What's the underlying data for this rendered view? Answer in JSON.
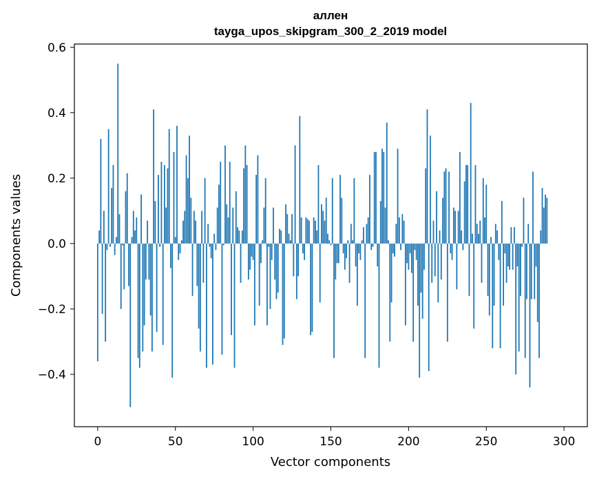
{
  "chart_data": {
    "type": "bar",
    "title_line1": "аллен",
    "title_line2": "tayga_upos_skipgram_300_2_2019 model",
    "xlabel": "Vector components",
    "ylabel": "Components values",
    "xlim": [
      -15,
      315
    ],
    "ylim": [
      -0.56,
      0.61
    ],
    "xticks": [
      0,
      50,
      100,
      150,
      200,
      250,
      300
    ],
    "xtick_labels": [
      "0",
      "50",
      "100",
      "150",
      "200",
      "250",
      "300"
    ],
    "yticks": [
      -0.4,
      -0.2,
      0.0,
      0.2,
      0.4,
      0.6
    ],
    "ytick_labels": [
      "−0.4",
      "−0.2",
      "0.0",
      "0.2",
      "0.4",
      "0.6"
    ],
    "bar_color": "#1f77b4",
    "grid": false,
    "values": [
      -0.36,
      0.04,
      0.32,
      -0.215,
      0.1,
      -0.3,
      -0.02,
      0.35,
      -0.01,
      0.17,
      0.24,
      -0.035,
      0.02,
      0.55,
      0.09,
      -0.2,
      -0.005,
      -0.14,
      0.16,
      0.215,
      -0.13,
      -0.5,
      0.02,
      0.1,
      0.04,
      0.08,
      -0.35,
      -0.38,
      0.15,
      -0.33,
      -0.25,
      -0.11,
      0.07,
      -0.11,
      -0.22,
      -0.33,
      0.41,
      0.13,
      -0.27,
      0.21,
      -0.01,
      0.25,
      -0.31,
      0.24,
      0.11,
      0.23,
      0.35,
      -0.075,
      -0.41,
      0.28,
      0.02,
      0.36,
      -0.05,
      -0.03,
      0.01,
      0.07,
      0.1,
      0.27,
      0.2,
      0.33,
      0.14,
      -0.16,
      0.1,
      0.07,
      -0.13,
      -0.26,
      -0.33,
      0.1,
      -0.12,
      0.2,
      -0.38,
      0.06,
      -0.01,
      -0.045,
      -0.37,
      0.03,
      -0.02,
      0.11,
      0.18,
      0.25,
      -0.34,
      -0.005,
      0.3,
      0.12,
      0.08,
      0.25,
      -0.28,
      0.11,
      -0.38,
      0.16,
      0.05,
      0.04,
      -0.12,
      0.04,
      0.23,
      0.3,
      0.24,
      -0.11,
      -0.08,
      -0.04,
      -0.05,
      -0.25,
      0.21,
      0.27,
      -0.19,
      -0.06,
      0.01,
      0.11,
      0.2,
      -0.25,
      -0.01,
      -0.2,
      -0.05,
      0.11,
      -0.11,
      -0.17,
      -0.15,
      0.045,
      0.04,
      -0.31,
      -0.29,
      0.12,
      0.09,
      0.03,
      0.01,
      0.09,
      -0.1,
      0.3,
      -0.17,
      -0.1,
      0.39,
      0.08,
      -0.03,
      -0.05,
      0.08,
      0.075,
      0.07,
      -0.28,
      -0.27,
      0.08,
      0.07,
      0.04,
      0.24,
      -0.18,
      0.12,
      0.1,
      0.07,
      0.14,
      0.03,
      0.01,
      -0.005,
      0.2,
      -0.35,
      -0.11,
      -0.06,
      -0.06,
      0.21,
      0.14,
      -0.03,
      -0.08,
      -0.045,
      0.01,
      -0.12,
      0.06,
      0.01,
      0.2,
      -0.07,
      -0.19,
      -0.03,
      -0.05,
      0.01,
      0.05,
      -0.35,
      0.06,
      0.08,
      0.21,
      -0.02,
      -0.01,
      0.28,
      0.28,
      -0.07,
      -0.38,
      0.13,
      0.29,
      0.28,
      0.11,
      0.37,
      0.01,
      -0.3,
      -0.18,
      -0.03,
      -0.04,
      0.06,
      0.29,
      0.08,
      -0.02,
      0.09,
      0.07,
      -0.25,
      -0.06,
      -0.08,
      -0.03,
      -0.09,
      -0.3,
      -0.02,
      -0.05,
      -0.19,
      -0.41,
      -0.15,
      -0.23,
      -0.08,
      0.23,
      0.41,
      -0.39,
      0.33,
      -0.12,
      0.07,
      -0.1,
      0.16,
      -0.18,
      0.04,
      -0.11,
      0.14,
      0.22,
      0.23,
      -0.3,
      0.22,
      -0.03,
      -0.05,
      0.11,
      0.1,
      -0.14,
      0.1,
      0.28,
      0.04,
      -0.02,
      0.19,
      0.24,
      0.24,
      -0.16,
      0.43,
      0.03,
      -0.26,
      0.24,
      0.06,
      0.03,
      0.07,
      -0.12,
      0.2,
      0.08,
      0.18,
      -0.16,
      -0.22,
      0.02,
      -0.32,
      -0.19,
      0.06,
      0.04,
      -0.05,
      -0.32,
      0.13,
      -0.19,
      -0.03,
      -0.12,
      -0.07,
      -0.08,
      0.05,
      -0.08,
      0.05,
      -0.4,
      -0.07,
      -0.33,
      -0.16,
      -0.01,
      0.14,
      -0.35,
      -0.17,
      0.06,
      -0.44,
      -0.17,
      0.22,
      -0.17,
      -0.07,
      -0.24,
      -0.35,
      0.04,
      0.17,
      0.11,
      0.15,
      0.14
    ]
  }
}
